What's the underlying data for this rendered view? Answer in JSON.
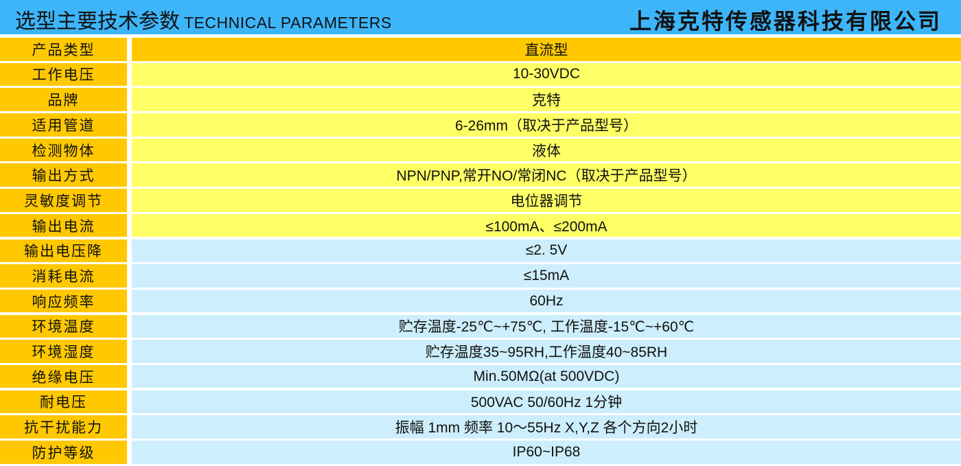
{
  "header": {
    "title_cn": "选型主要技术参数",
    "title_en": "TECHNICAL PARAMETERS",
    "company": "上海克特传感器科技有限公司"
  },
  "colors": {
    "header": "#3db5f9",
    "label": "#ffc800",
    "highlight": "#ffff66",
    "normal": "#cdeefc"
  },
  "rows": [
    {
      "label": "产品类型",
      "value": "直流型",
      "style": "orange"
    },
    {
      "label": "工作电压",
      "value": "10-30VDC",
      "style": "yellow"
    },
    {
      "label": "品牌",
      "value": "克特",
      "style": "yellow"
    },
    {
      "label": "适用管道",
      "value": "6-26mm（取决于产品型号）",
      "style": "yellow"
    },
    {
      "label": "检测物体",
      "value": "液体",
      "style": "yellow"
    },
    {
      "label": "输出方式",
      "value": "NPN/PNP,常开NO/常闭NC（取决于产品型号）",
      "style": "yellow"
    },
    {
      "label": "灵敏度调节",
      "value": "电位器调节",
      "style": "yellow"
    },
    {
      "label": "输出电流",
      "value": "≤100mA、≤200mA",
      "style": "yellow"
    },
    {
      "label": "输出电压降",
      "value": "≤2. 5V",
      "style": "blue"
    },
    {
      "label": "消耗电流",
      "value": "≤15mA",
      "style": "blue"
    },
    {
      "label": "响应频率",
      "value": "60Hz",
      "style": "blue"
    },
    {
      "label": "环境温度",
      "value": "贮存温度-25℃~+75℃, 工作温度-15℃~+60℃",
      "style": "blue"
    },
    {
      "label": "环境湿度",
      "value": "贮存温度35~95RH,工作温度40~85RH",
      "style": "blue"
    },
    {
      "label": "绝缘电压",
      "value": "Min.50MΩ(at 500VDC)",
      "style": "blue"
    },
    {
      "label": "耐电压",
      "value": "500VAC 50/60Hz 1分钟",
      "style": "blue"
    },
    {
      "label": "抗干扰能力",
      "value": "振幅  1mm 频率  10～55Hz  X,Y,Z 各个方向2小时",
      "style": "blue"
    },
    {
      "label": "防护等级",
      "value": "IP60~IP68",
      "style": "blue"
    }
  ]
}
